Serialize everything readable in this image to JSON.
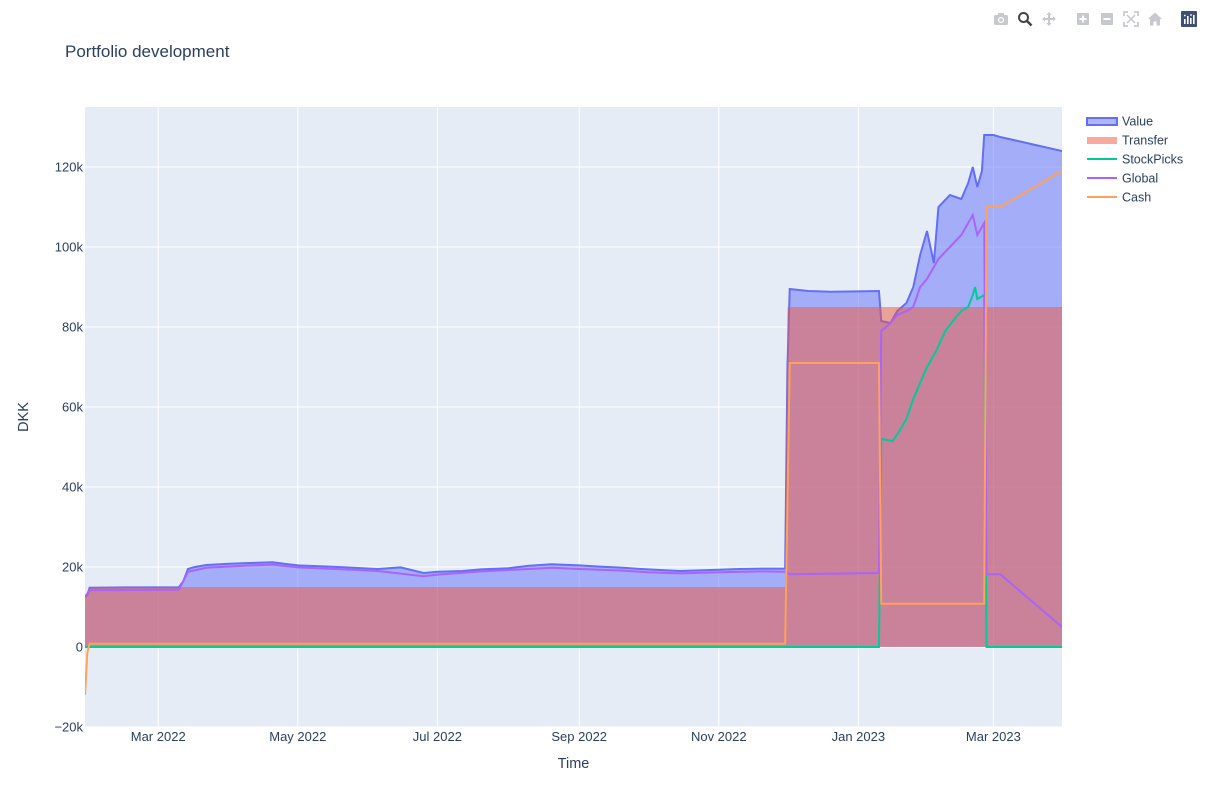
{
  "modebar": {
    "buttons": [
      {
        "name": "camera-icon",
        "active": false
      },
      {
        "name": "zoom-icon",
        "active": true
      },
      {
        "name": "pan-icon",
        "active": false
      },
      {
        "name": "zoom-in-icon",
        "active": false
      },
      {
        "name": "zoom-out-icon",
        "active": false
      },
      {
        "name": "autoscale-icon",
        "active": false
      },
      {
        "name": "home-icon",
        "active": false
      },
      {
        "name": "plotly-logo-icon",
        "active": false
      }
    ]
  },
  "colors": {
    "value": "#636efa",
    "transfer": "#ef553b",
    "stockpicks": "#00cc96",
    "global": "#ab63fa",
    "cash": "#ffa15a",
    "plot_bg": "#e5ecf6",
    "grid": "#ffffff",
    "text": "#2a3f5f"
  },
  "chart_data": {
    "type": "area",
    "title": "Portfolio development",
    "xlabel": "Time",
    "ylabel": "DKK",
    "xlim": [
      "2022-01-28",
      "2023-03-31"
    ],
    "ylim": [
      -20000,
      135000
    ],
    "grid": true,
    "legend_position": "top-right",
    "x_ticks": [
      {
        "date": "2022-03-01",
        "label": "Mar 2022"
      },
      {
        "date": "2022-05-01",
        "label": "May 2022"
      },
      {
        "date": "2022-07-01",
        "label": "Jul 2022"
      },
      {
        "date": "2022-09-01",
        "label": "Sep 2022"
      },
      {
        "date": "2022-11-01",
        "label": "Nov 2022"
      },
      {
        "date": "2023-01-01",
        "label": "Jan 2023"
      },
      {
        "date": "2023-03-01",
        "label": "Mar 2023"
      }
    ],
    "y_ticks": [
      {
        "value": -20000,
        "label": "−20k"
      },
      {
        "value": 0,
        "label": "0"
      },
      {
        "value": 20000,
        "label": "20k"
      },
      {
        "value": 40000,
        "label": "40k"
      },
      {
        "value": 60000,
        "label": "60k"
      },
      {
        "value": 80000,
        "label": "80k"
      },
      {
        "value": 100000,
        "label": "100k"
      },
      {
        "value": 120000,
        "label": "120k"
      }
    ],
    "series": [
      {
        "name": "Value",
        "kind": "area",
        "color": "#636efa",
        "points": [
          [
            "2022-01-28",
            12500
          ],
          [
            "2022-01-29",
            13000
          ],
          [
            "2022-01-30",
            14800
          ],
          [
            "2022-02-15",
            14900
          ],
          [
            "2022-03-01",
            14900
          ],
          [
            "2022-03-10",
            14900
          ],
          [
            "2022-03-12",
            16500
          ],
          [
            "2022-03-14",
            19500
          ],
          [
            "2022-03-17",
            20000
          ],
          [
            "2022-03-22",
            20500
          ],
          [
            "2022-04-01",
            20800
          ],
          [
            "2022-04-10",
            21000
          ],
          [
            "2022-04-20",
            21200
          ],
          [
            "2022-04-25",
            20800
          ],
          [
            "2022-05-01",
            20400
          ],
          [
            "2022-05-15",
            20100
          ],
          [
            "2022-05-25",
            19800
          ],
          [
            "2022-06-05",
            19500
          ],
          [
            "2022-06-15",
            19900
          ],
          [
            "2022-06-25",
            18500
          ],
          [
            "2022-07-01",
            18800
          ],
          [
            "2022-07-12",
            19000
          ],
          [
            "2022-07-20",
            19400
          ],
          [
            "2022-08-01",
            19700
          ],
          [
            "2022-08-10",
            20300
          ],
          [
            "2022-08-20",
            20700
          ],
          [
            "2022-09-01",
            20400
          ],
          [
            "2022-09-10",
            20100
          ],
          [
            "2022-09-20",
            19800
          ],
          [
            "2022-10-01",
            19400
          ],
          [
            "2022-10-15",
            19000
          ],
          [
            "2022-11-01",
            19300
          ],
          [
            "2022-11-10",
            19500
          ],
          [
            "2022-11-20",
            19600
          ],
          [
            "2022-11-30",
            19600
          ],
          [
            "2022-12-01",
            70000
          ],
          [
            "2022-12-02",
            89500
          ],
          [
            "2022-12-10",
            89000
          ],
          [
            "2022-12-20",
            88800
          ],
          [
            "2023-01-01",
            88900
          ],
          [
            "2023-01-10",
            89000
          ],
          [
            "2023-01-11",
            81500
          ],
          [
            "2023-01-15",
            81000
          ],
          [
            "2023-01-18",
            84000
          ],
          [
            "2023-01-22",
            86000
          ],
          [
            "2023-01-25",
            90000
          ],
          [
            "2023-01-28",
            98000
          ],
          [
            "2023-01-31",
            104000
          ],
          [
            "2023-02-03",
            96000
          ],
          [
            "2023-02-05",
            110000
          ],
          [
            "2023-02-10",
            113000
          ],
          [
            "2023-02-15",
            112000
          ],
          [
            "2023-02-18",
            116000
          ],
          [
            "2023-02-20",
            120000
          ],
          [
            "2023-02-22",
            115000
          ],
          [
            "2023-02-24",
            119000
          ],
          [
            "2023-02-25",
            128000
          ],
          [
            "2023-03-01",
            128000
          ],
          [
            "2023-03-04",
            127500
          ],
          [
            "2023-03-31",
            124000
          ]
        ]
      },
      {
        "name": "Transfer",
        "kind": "area",
        "color": "#ef553b",
        "points": [
          [
            "2022-01-28",
            12500
          ],
          [
            "2022-01-30",
            15000
          ],
          [
            "2022-11-30",
            15000
          ],
          [
            "2022-12-01",
            85000
          ],
          [
            "2023-03-31",
            85000
          ]
        ]
      },
      {
        "name": "StockPicks",
        "kind": "line",
        "color": "#00cc96",
        "points": [
          [
            "2022-01-28",
            0
          ],
          [
            "2023-01-10",
            0
          ],
          [
            "2023-01-11",
            52000
          ],
          [
            "2023-01-16",
            51500
          ],
          [
            "2023-01-19",
            54000
          ],
          [
            "2023-01-22",
            57000
          ],
          [
            "2023-01-25",
            62000
          ],
          [
            "2023-01-28",
            66000
          ],
          [
            "2023-01-31",
            70000
          ],
          [
            "2023-02-04",
            74000
          ],
          [
            "2023-02-08",
            79000
          ],
          [
            "2023-02-12",
            82000
          ],
          [
            "2023-02-15",
            84000
          ],
          [
            "2023-02-18",
            85000
          ],
          [
            "2023-02-20",
            88000
          ],
          [
            "2023-02-21",
            90000
          ],
          [
            "2023-02-22",
            87000
          ],
          [
            "2023-02-25",
            88000
          ],
          [
            "2023-02-26",
            0
          ],
          [
            "2023-03-31",
            0
          ]
        ]
      },
      {
        "name": "Global",
        "kind": "line",
        "color": "#ab63fa",
        "points": [
          [
            "2022-01-28",
            12500
          ],
          [
            "2022-01-30",
            14200
          ],
          [
            "2022-03-10",
            14300
          ],
          [
            "2022-03-14",
            18800
          ],
          [
            "2022-03-22",
            19800
          ],
          [
            "2022-04-10",
            20400
          ],
          [
            "2022-04-20",
            20600
          ],
          [
            "2022-05-01",
            19900
          ],
          [
            "2022-05-25",
            19300
          ],
          [
            "2022-06-05",
            19000
          ],
          [
            "2022-06-25",
            17700
          ],
          [
            "2022-07-01",
            18100
          ],
          [
            "2022-07-20",
            18900
          ],
          [
            "2022-08-10",
            19500
          ],
          [
            "2022-08-20",
            19800
          ],
          [
            "2022-09-01",
            19500
          ],
          [
            "2022-09-20",
            19100
          ],
          [
            "2022-10-01",
            18700
          ],
          [
            "2022-10-15",
            18400
          ],
          [
            "2022-11-01",
            18700
          ],
          [
            "2022-11-20",
            18900
          ],
          [
            "2022-11-30",
            18800
          ],
          [
            "2022-12-02",
            18200
          ],
          [
            "2023-01-10",
            18500
          ],
          [
            "2023-01-11",
            79000
          ],
          [
            "2023-01-15",
            81000
          ],
          [
            "2023-01-18",
            83000
          ],
          [
            "2023-01-22",
            84000
          ],
          [
            "2023-01-25",
            85000
          ],
          [
            "2023-01-28",
            90000
          ],
          [
            "2023-01-31",
            92000
          ],
          [
            "2023-02-05",
            97000
          ],
          [
            "2023-02-10",
            100000
          ],
          [
            "2023-02-15",
            103000
          ],
          [
            "2023-02-18",
            106000
          ],
          [
            "2023-02-20",
            108000
          ],
          [
            "2023-02-22",
            103000
          ],
          [
            "2023-02-25",
            106000
          ],
          [
            "2023-02-26",
            18200
          ],
          [
            "2023-03-04",
            18200
          ],
          [
            "2023-03-31",
            5000
          ]
        ]
      },
      {
        "name": "Cash",
        "kind": "line",
        "color": "#ffa15a",
        "points": [
          [
            "2022-01-28",
            -12000
          ],
          [
            "2022-01-29",
            -1500
          ],
          [
            "2022-01-30",
            800
          ],
          [
            "2022-11-30",
            800
          ],
          [
            "2022-12-02",
            71000
          ],
          [
            "2023-01-10",
            71000
          ],
          [
            "2023-01-11",
            10800
          ],
          [
            "2023-02-25",
            10800
          ],
          [
            "2023-02-26",
            110000
          ],
          [
            "2023-03-04",
            110000
          ],
          [
            "2023-03-31",
            119000
          ]
        ]
      }
    ]
  }
}
